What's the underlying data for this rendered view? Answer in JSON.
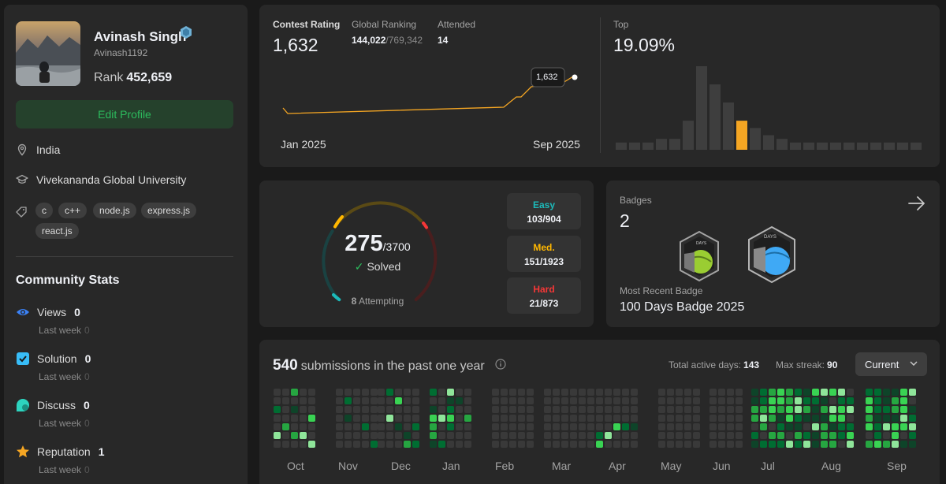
{
  "profile": {
    "name": "Avinash Singh",
    "username": "Avinash1192",
    "rank_label": "Rank",
    "rank_value": "452,659",
    "edit_label": "Edit Profile",
    "location": "India",
    "university": "Vivekananda Global University",
    "skills": [
      "c",
      "c++",
      "node.js",
      "express.js",
      "react.js"
    ]
  },
  "community": {
    "title": "Community Stats",
    "sub_label": "Last week",
    "items": [
      {
        "label": "Views",
        "value": "0",
        "last_week": "0",
        "color": "#3b82f6"
      },
      {
        "label": "Solution",
        "value": "0",
        "last_week": "0",
        "color": "#38bdf8"
      },
      {
        "label": "Discuss",
        "value": "0",
        "last_week": "0",
        "color": "#2dd4bf"
      },
      {
        "label": "Reputation",
        "value": "1",
        "last_week": "0",
        "color": "#f5a623"
      }
    ]
  },
  "contest": {
    "rating_label": "Contest Rating",
    "rating_value": "1,632",
    "ranking_label": "Global Ranking",
    "ranking_value": "144,022",
    "ranking_total": "/769,342",
    "attended_label": "Attended",
    "attended_value": "14",
    "tooltip": "1,632",
    "start_label": "Jan 2025",
    "end_label": "Sep 2025",
    "top_label": "Top",
    "top_value": "19.09%",
    "histogram": [
      2,
      2,
      2,
      3,
      3,
      8,
      23,
      18,
      13,
      8,
      6,
      4,
      3,
      2,
      2,
      2,
      2,
      2,
      2,
      2,
      2,
      2,
      2
    ],
    "highlight_index": 9
  },
  "problems": {
    "solved": "275",
    "total": "/3700",
    "solved_label": "Solved",
    "attempting_count": "8",
    "attempting_label": "Attempting",
    "easy_label": "Easy",
    "easy_value": "103/904",
    "med_label": "Med.",
    "med_value": "151/1923",
    "hard_label": "Hard",
    "hard_value": "21/873",
    "colors": {
      "easy": "#1cbaba",
      "med": "#ffb700",
      "hard": "#f63737"
    }
  },
  "badges": {
    "title": "Badges",
    "count": "2",
    "recent_label": "Most Recent Badge",
    "recent_name": "100 Days Badge 2025",
    "icon_text": "DAYS"
  },
  "submissions": {
    "count": "540",
    "label": "submissions in the past one year",
    "active_label": "Total active days:",
    "active_value": "143",
    "streak_label": "Max streak:",
    "streak_value": "90",
    "dropdown": "Current",
    "months": [
      "Oct",
      "Nov",
      "Dec",
      "Jan",
      "Feb",
      "Mar",
      "Apr",
      "May",
      "Jun",
      "Jul",
      "Aug",
      "Sep"
    ]
  }
}
